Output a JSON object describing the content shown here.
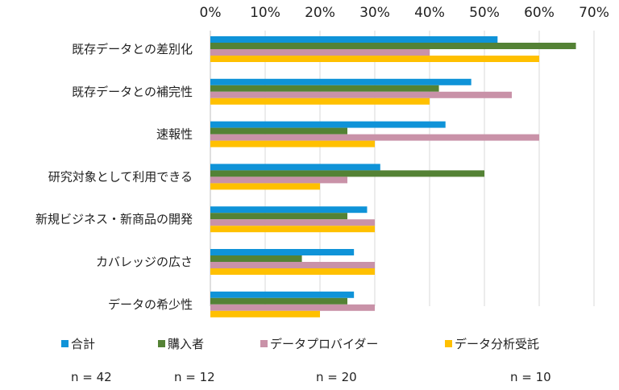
{
  "chart_data": {
    "type": "bar",
    "orientation": "horizontal",
    "categories": [
      "既存データとの差別化",
      "既存データとの補完性",
      "速報性",
      "研究対象として利用できる",
      "新規ビジネス・新商品の開発",
      "カバレッジの広さ",
      "データの希少性"
    ],
    "series": [
      {
        "name": "合計",
        "color": "#0F93D8",
        "n_label": "n = 42",
        "values": [
          52.4,
          47.6,
          42.9,
          31.0,
          28.6,
          26.2,
          26.2
        ]
      },
      {
        "name": "購入者",
        "color": "#548235",
        "n_label": "n = 12",
        "values": [
          66.7,
          41.7,
          25.0,
          50.0,
          25.0,
          16.7,
          25.0
        ]
      },
      {
        "name": "データプロバイダー",
        "color": "#C992A8",
        "n_label": "n = 20",
        "values": [
          40.0,
          55.0,
          60.0,
          25.0,
          30.0,
          30.0,
          30.0
        ]
      },
      {
        "name": "データ分析受託",
        "color": "#FFC000",
        "n_label": "n = 10",
        "values": [
          60.0,
          40.0,
          30.0,
          20.0,
          30.0,
          30.0,
          20.0
        ]
      }
    ],
    "xticks": [
      "0%",
      "10%",
      "20%",
      "30%",
      "40%",
      "50%",
      "60%",
      "70%"
    ],
    "xlim": [
      0,
      70
    ],
    "x_axis_position": "top",
    "grid": true,
    "legend": "bottom"
  }
}
